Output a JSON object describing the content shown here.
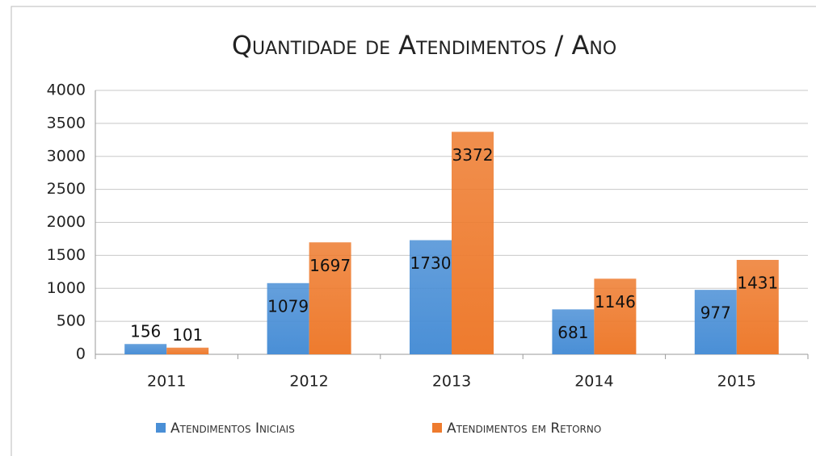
{
  "chart_data": {
    "type": "bar",
    "title": "Quantidade de Atendimentos / Ano",
    "categories": [
      "2011",
      "2012",
      "2013",
      "2014",
      "2015"
    ],
    "series": [
      {
        "name": "Atendimentos Iniciais",
        "color": "#4a8fd6",
        "values": [
          156,
          1079,
          1730,
          681,
          977
        ]
      },
      {
        "name": "Atendimentos em Retorno",
        "color": "#ee7b2e",
        "values": [
          101,
          1697,
          3372,
          1146,
          1431
        ]
      }
    ],
    "ylim": [
      0,
      4000
    ],
    "yticks": [
      0,
      500,
      1000,
      1500,
      2000,
      2500,
      3000,
      3500,
      4000
    ],
    "grid": true,
    "legend": "bottom"
  }
}
